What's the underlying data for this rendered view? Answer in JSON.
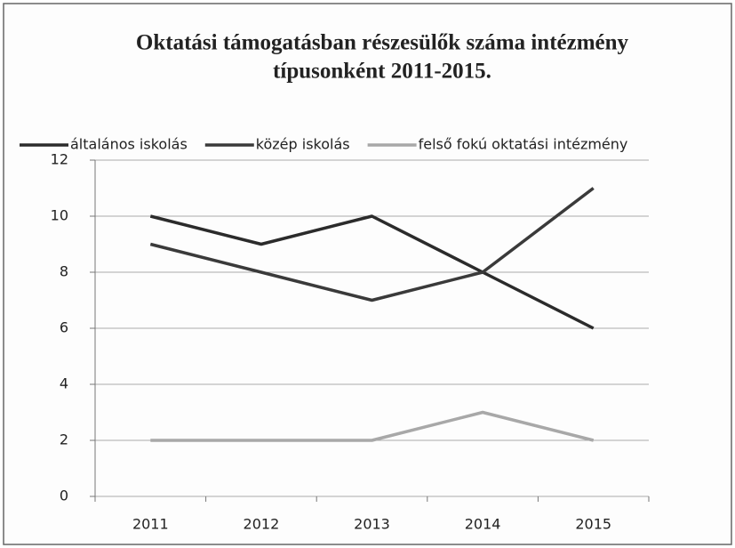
{
  "chart_data": {
    "type": "line",
    "title": [
      "Oktatási támogatásban részesülők száma intézmény",
      "típusonként 2011-2015."
    ],
    "categories": [
      "2011",
      "2012",
      "2013",
      "2014",
      "2015"
    ],
    "series": [
      {
        "name": "általános iskolás",
        "color": "#2b2b2b",
        "values": [
          10,
          9,
          10,
          8,
          6
        ]
      },
      {
        "name": "közép iskolás",
        "color": "#3a3a3a",
        "values": [
          9,
          8,
          7,
          8,
          11
        ]
      },
      {
        "name": "felső fokú oktatási intézmény",
        "color": "#a8a8a8",
        "values": [
          2,
          2,
          2,
          3,
          2
        ]
      }
    ],
    "ylim": [
      0,
      12
    ],
    "yticks": [
      0,
      2,
      4,
      6,
      8,
      10,
      12
    ],
    "grid": true,
    "legend": "top"
  }
}
